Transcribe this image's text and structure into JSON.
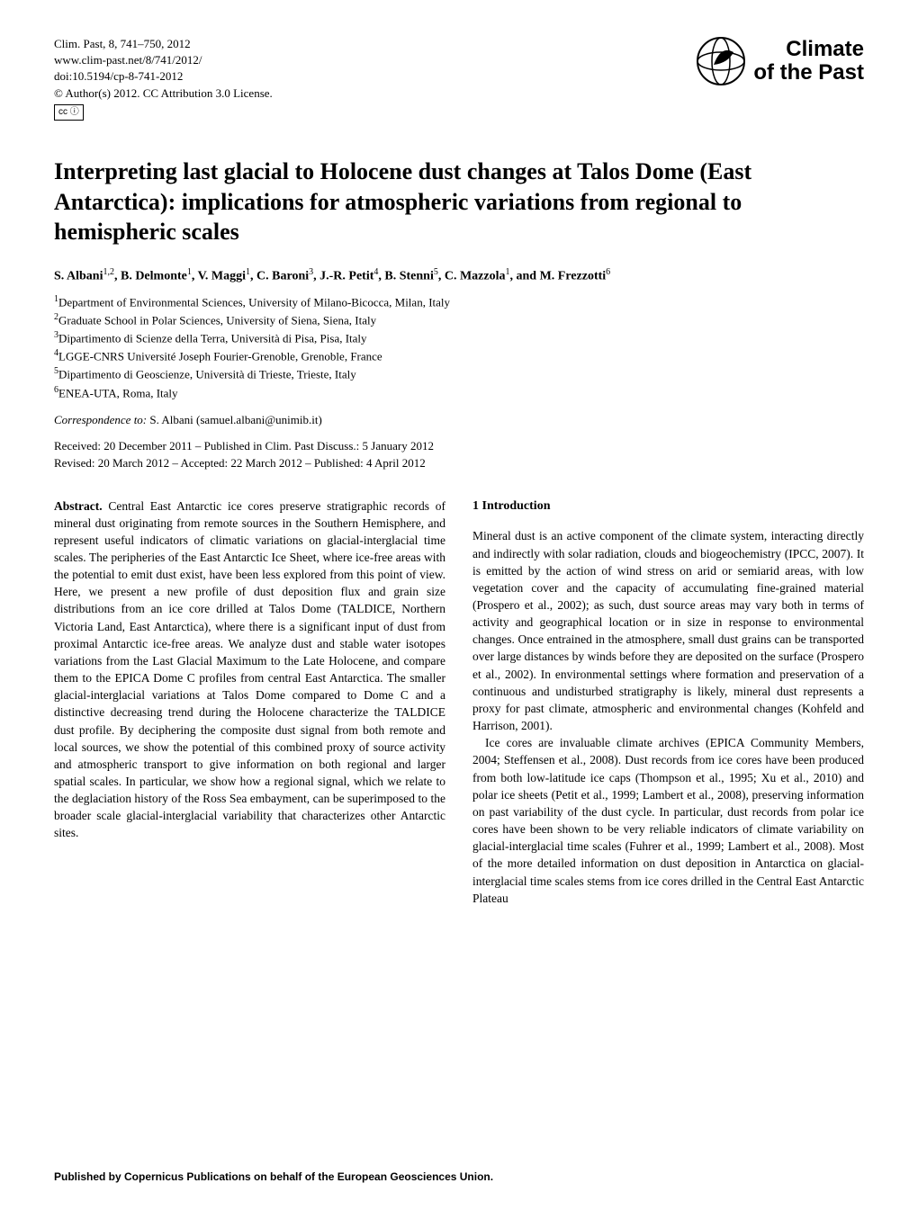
{
  "meta": {
    "citation": "Clim. Past, 8, 741–750, 2012",
    "url": "www.clim-past.net/8/741/2012/",
    "doi": "doi:10.5194/cp-8-741-2012",
    "copyright": "© Author(s) 2012. CC Attribution 3.0 License.",
    "cc_label": "cc  ⓘ"
  },
  "journal": {
    "line1": "Climate",
    "line2": "of the Past"
  },
  "title": "Interpreting last glacial to Holocene dust changes at Talos Dome (East Antarctica): implications for atmospheric variations from regional to hemispheric scales",
  "authors_html": "S. Albani<sup>1,2</sup>, B. Delmonte<sup>1</sup>, V. Maggi<sup>1</sup>, C. Baroni<sup>3</sup>, J.-R. Petit<sup>4</sup>, B. Stenni<sup>5</sup>, C. Mazzola<sup>1</sup>, and M. Frezzotti<sup>6</sup>",
  "affiliations": [
    "<sup>1</sup>Department of Environmental Sciences, University of Milano-Bicocca, Milan, Italy",
    "<sup>2</sup>Graduate School in Polar Sciences, University of Siena, Siena, Italy",
    "<sup>3</sup>Dipartimento di Scienze della Terra, Università di Pisa, Pisa, Italy",
    "<sup>4</sup>LGGE-CNRS Université Joseph Fourier-Grenoble, Grenoble, France",
    "<sup>5</sup>Dipartimento di Geoscienze, Università di Trieste, Trieste, Italy",
    "<sup>6</sup>ENEA-UTA, Roma, Italy"
  ],
  "correspondence": {
    "label": "Correspondence to:",
    "text": " S. Albani (samuel.albani@unimib.it)"
  },
  "dates": {
    "line1": "Received: 20 December 2011 – Published in Clim. Past Discuss.: 5 January 2012",
    "line2": "Revised: 20 March 2012 – Accepted: 22 March 2012 – Published: 4 April 2012"
  },
  "abstract": {
    "label": "Abstract.",
    "text": " Central East Antarctic ice cores preserve stratigraphic records of mineral dust originating from remote sources in the Southern Hemisphere, and represent useful indicators of climatic variations on glacial-interglacial time scales. The peripheries of the East Antarctic Ice Sheet, where ice-free areas with the potential to emit dust exist, have been less explored from this point of view. Here, we present a new profile of dust deposition flux and grain size distributions from an ice core drilled at Talos Dome (TALDICE, Northern Victoria Land, East Antarctica), where there is a significant input of dust from proximal Antarctic ice-free areas. We analyze dust and stable water isotopes variations from the Last Glacial Maximum to the Late Holocene, and compare them to the EPICA Dome C profiles from central East Antarctica. The smaller glacial-interglacial variations at Talos Dome compared to Dome C and a distinctive decreasing trend during the Holocene characterize the TALDICE dust profile. By deciphering the composite dust signal from both remote and local sources, we show the potential of this combined proxy of source activity and atmospheric transport to give information on both regional and larger spatial scales. In particular, we show how a regional signal, which we relate to the deglaciation history of the Ross Sea embayment, can be superimposed to the broader scale glacial-interglacial variability that characterizes other Antarctic sites."
  },
  "section1": {
    "heading": "1   Introduction",
    "p1": "Mineral dust is an active component of the climate system, interacting directly and indirectly with solar radiation, clouds and biogeochemistry (IPCC, 2007). It is emitted by the action of wind stress on arid or semiarid areas, with low vegetation cover and the capacity of accumulating fine-grained material (Prospero et al., 2002); as such, dust source areas may vary both in terms of activity and geographical location or in size in response to environmental changes. Once entrained in the atmosphere, small dust grains can be transported over large distances by winds before they are deposited on the surface (Prospero et al., 2002). In environmental settings where formation and preservation of a continuous and undisturbed stratigraphy is likely, mineral dust represents a proxy for past climate, atmospheric and environmental changes (Kohfeld and Harrison, 2001).",
    "p2": "Ice cores are invaluable climate archives (EPICA Community Members, 2004; Steffensen et al., 2008). Dust records from ice cores have been produced from both low-latitude ice caps (Thompson et al., 1995; Xu et al., 2010) and polar ice sheets (Petit et al., 1999; Lambert et al., 2008), preserving information on past variability of the dust cycle. In particular, dust records from polar ice cores have been shown to be very reliable indicators of climate variability on glacial-interglacial time scales (Fuhrer et al., 1999; Lambert et al., 2008). Most of the more detailed information on dust deposition in Antarctica on glacial-interglacial time scales stems from ice cores drilled in the Central East Antarctic Plateau"
  },
  "footer": "Published by Copernicus Publications on behalf of the European Geosciences Union."
}
